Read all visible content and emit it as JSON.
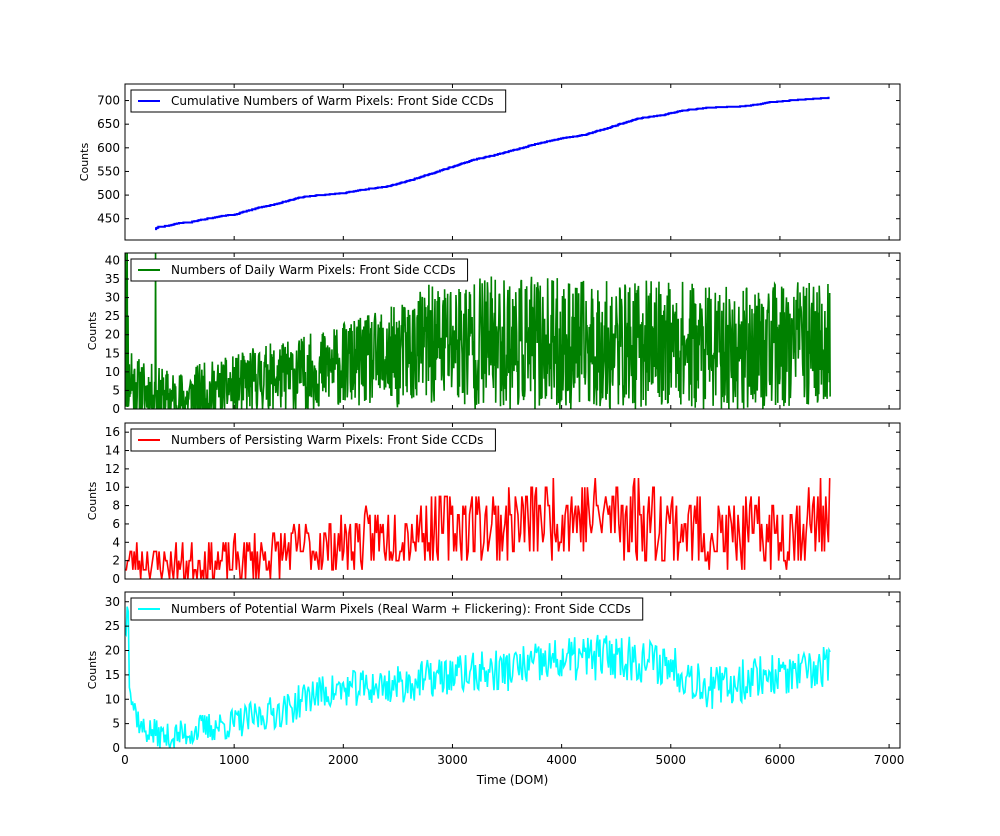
{
  "chart_data": {
    "type": "line",
    "shared_x": {
      "label": "Time (DOM)",
      "lim": [
        0,
        7100
      ],
      "ticks": [
        0,
        1000,
        2000,
        3000,
        4000,
        5000,
        6000,
        7000
      ],
      "tick_labels": [
        "0",
        "1000",
        "2000",
        "3000",
        "4000",
        "5000",
        "6000",
        "7000"
      ]
    },
    "panels": [
      {
        "id": "cumulative",
        "ylabel": "Counts",
        "ylim": [
          405,
          735
        ],
        "yticks": [
          450,
          500,
          550,
          600,
          650,
          700
        ],
        "ytick_labels": [
          "450",
          "500",
          "550",
          "600",
          "650",
          "700"
        ],
        "color": "#0000ff",
        "legend": "Cumulative Numbers of Warm Pixels: Front Side CCDs",
        "legend_loc": "upper left",
        "style": "step",
        "x_range": [
          275,
          6460
        ],
        "anchors": [
          [
            275,
            428
          ],
          [
            300,
            432
          ],
          [
            400,
            435
          ],
          [
            480,
            440
          ],
          [
            600,
            442
          ],
          [
            700,
            448
          ],
          [
            900,
            456
          ],
          [
            1000,
            458
          ],
          [
            1100,
            465
          ],
          [
            1200,
            472
          ],
          [
            1400,
            482
          ],
          [
            1600,
            495
          ],
          [
            1800,
            500
          ],
          [
            2000,
            504
          ],
          [
            2200,
            512
          ],
          [
            2400,
            518
          ],
          [
            2600,
            530
          ],
          [
            2800,
            545
          ],
          [
            3000,
            560
          ],
          [
            3200,
            575
          ],
          [
            3400,
            585
          ],
          [
            3600,
            597
          ],
          [
            3800,
            610
          ],
          [
            4000,
            620
          ],
          [
            4200,
            627
          ],
          [
            4400,
            640
          ],
          [
            4600,
            655
          ],
          [
            4700,
            662
          ],
          [
            4900,
            668
          ],
          [
            5100,
            678
          ],
          [
            5300,
            684
          ],
          [
            5500,
            686
          ],
          [
            5700,
            688
          ],
          [
            5900,
            696
          ],
          [
            6100,
            700
          ],
          [
            6300,
            703
          ],
          [
            6460,
            706
          ]
        ]
      },
      {
        "id": "daily",
        "ylabel": "Counts",
        "ylim": [
          0,
          42
        ],
        "yticks": [
          0,
          5,
          10,
          15,
          20,
          25,
          30,
          35,
          40
        ],
        "ytick_labels": [
          "0",
          "5",
          "10",
          "15",
          "20",
          "25",
          "30",
          "35",
          "40"
        ],
        "color": "#008000",
        "legend": "Numbers of Daily Warm Pixels: Front Side CCDs",
        "legend_loc": "upper left",
        "style": "noise",
        "x_range": [
          0,
          6460
        ],
        "step": 4,
        "spikes": [
          [
            5,
            42
          ],
          [
            20,
            42
          ],
          [
            30,
            25
          ],
          [
            60,
            15
          ],
          [
            280,
            42
          ]
        ],
        "anchors": [
          [
            0,
            8
          ],
          [
            100,
            6
          ],
          [
            300,
            3
          ],
          [
            500,
            2
          ],
          [
            700,
            4
          ],
          [
            1000,
            6
          ],
          [
            1200,
            8
          ],
          [
            1500,
            9
          ],
          [
            1700,
            10
          ],
          [
            2000,
            12
          ],
          [
            2500,
            14
          ],
          [
            2700,
            17
          ],
          [
            3000,
            18
          ],
          [
            3500,
            18
          ],
          [
            4000,
            17
          ],
          [
            4500,
            17
          ],
          [
            5000,
            18
          ],
          [
            5400,
            16
          ],
          [
            6000,
            17
          ],
          [
            6460,
            18
          ]
        ],
        "amplitudes": [
          [
            0,
            6
          ],
          [
            1000,
            6
          ],
          [
            2000,
            8
          ],
          [
            2700,
            11
          ],
          [
            3000,
            13
          ],
          [
            4000,
            13
          ],
          [
            5000,
            12
          ],
          [
            6460,
            12
          ]
        ],
        "seed": 11
      },
      {
        "id": "persisting",
        "ylabel": "Counts",
        "ylim": [
          0,
          17
        ],
        "yticks": [
          0,
          2,
          4,
          6,
          8,
          10,
          12,
          14,
          16
        ],
        "ytick_labels": [
          "0",
          "2",
          "4",
          "6",
          "8",
          "10",
          "12",
          "14",
          "16"
        ],
        "color": "#ff0000",
        "legend": "Numbers of Persisting Warm Pixels: Front Side CCDs",
        "legend_loc": "upper left",
        "style": "noise",
        "x_range": [
          0,
          6460
        ],
        "step": 12,
        "integer": true,
        "anchors": [
          [
            0,
            2
          ],
          [
            500,
            1.5
          ],
          [
            1000,
            2
          ],
          [
            1500,
            3
          ],
          [
            2000,
            4
          ],
          [
            2500,
            5
          ],
          [
            3000,
            6
          ],
          [
            3500,
            6
          ],
          [
            4000,
            7
          ],
          [
            4500,
            7
          ],
          [
            5000,
            6
          ],
          [
            5500,
            4.5
          ],
          [
            6000,
            5
          ],
          [
            6460,
            7
          ]
        ],
        "amplitudes": [
          [
            0,
            1.5
          ],
          [
            1500,
            2
          ],
          [
            2500,
            2.5
          ],
          [
            3500,
            3
          ],
          [
            4500,
            3.5
          ],
          [
            5500,
            3
          ],
          [
            6460,
            3
          ]
        ],
        "seed": 23
      },
      {
        "id": "potential",
        "ylabel": "Counts",
        "ylim": [
          0,
          32
        ],
        "yticks": [
          0,
          5,
          10,
          15,
          20,
          25,
          30
        ],
        "ytick_labels": [
          "0",
          "5",
          "10",
          "15",
          "20",
          "25",
          "30"
        ],
        "color": "#00ffff",
        "legend": "Numbers of Potential Warm Pixels (Real Warm + Flickering): Front Side CCDs",
        "legend_loc": "upper left",
        "style": "noise",
        "x_range": [
          0,
          6460
        ],
        "step": 10,
        "spikes": [
          [
            20,
            29
          ],
          [
            30,
            28
          ]
        ],
        "anchors": [
          [
            0,
            25
          ],
          [
            60,
            10
          ],
          [
            150,
            4
          ],
          [
            400,
            2
          ],
          [
            700,
            4
          ],
          [
            1000,
            5
          ],
          [
            1300,
            7
          ],
          [
            1500,
            8
          ],
          [
            1700,
            11
          ],
          [
            2000,
            12
          ],
          [
            2500,
            13
          ],
          [
            3000,
            15
          ],
          [
            3500,
            16
          ],
          [
            4000,
            18
          ],
          [
            4500,
            19
          ],
          [
            5000,
            17
          ],
          [
            5400,
            12
          ],
          [
            5800,
            15
          ],
          [
            6200,
            15
          ],
          [
            6460,
            17
          ]
        ],
        "amplitudes": [
          [
            0,
            2
          ],
          [
            1500,
            2.5
          ],
          [
            3000,
            3
          ],
          [
            4500,
            3.5
          ],
          [
            6460,
            3
          ]
        ],
        "seed": 37
      }
    ]
  }
}
